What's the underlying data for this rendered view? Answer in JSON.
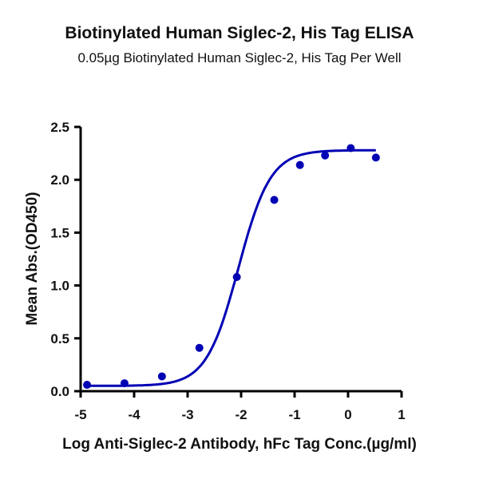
{
  "chart_data": {
    "type": "scatter",
    "title": "Biotinylated Human Siglec-2, His Tag ELISA",
    "subtitle": "0.05µg Biotinylated Human Siglec-2, His Tag Per Well",
    "xlabel": "Log Anti-Siglec-2 Antibody, hFc Tag Conc.(µg/ml)",
    "ylabel": "Mean Abs.(OD450)",
    "xlim": [
      -5,
      1
    ],
    "ylim": [
      0,
      2.5
    ],
    "x_ticks": [
      "-5",
      "-4",
      "-3",
      "-2",
      "-1",
      "0",
      "1"
    ],
    "y_ticks": [
      "0.0",
      "0.5",
      "1.0",
      "1.5",
      "2.0",
      "2.5"
    ],
    "grid": false,
    "legend": null,
    "series": [
      {
        "name": "Mean Abs.(OD450)",
        "color": "#0000b4",
        "points": [
          {
            "x": -4.88,
            "y": 0.06
          },
          {
            "x": -4.18,
            "y": 0.075
          },
          {
            "x": -3.48,
            "y": 0.14
          },
          {
            "x": -2.78,
            "y": 0.41
          },
          {
            "x": -2.08,
            "y": 1.08
          },
          {
            "x": -1.38,
            "y": 1.81
          },
          {
            "x": -0.9,
            "y": 2.14
          },
          {
            "x": -0.43,
            "y": 2.23
          },
          {
            "x": 0.05,
            "y": 2.3
          },
          {
            "x": 0.52,
            "y": 2.21
          }
        ],
        "fit": "4PL sigmoid",
        "fit_params": {
          "bottom": 0.05,
          "top": 2.28,
          "logEC50": -2.05,
          "hill": 1.45
        }
      }
    ]
  }
}
